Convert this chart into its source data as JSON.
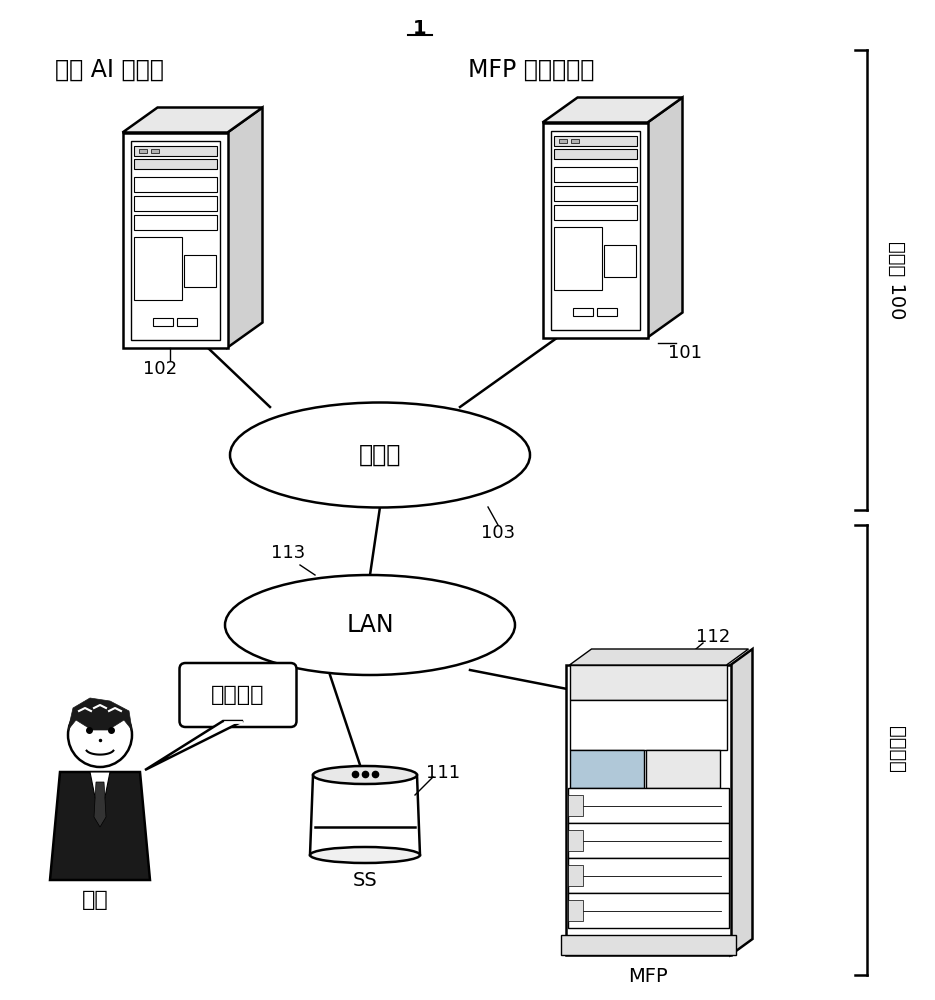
{
  "title": "1",
  "bg_color": "#ffffff",
  "label_ai_server": "语音 AI 服务器",
  "label_mfp_server": "MFP 控制服务器",
  "label_internet": "因特网",
  "label_lan": "LAN",
  "label_user": "用户",
  "label_ss": "SS",
  "label_mfp": "MFP",
  "label_cloud": "云系统 100",
  "label_user_system": "用户系统",
  "label_speech": "进行复印",
  "num_101": "101",
  "num_102": "102",
  "num_103": "103",
  "num_111": "111",
  "num_112": "112",
  "num_113": "113"
}
